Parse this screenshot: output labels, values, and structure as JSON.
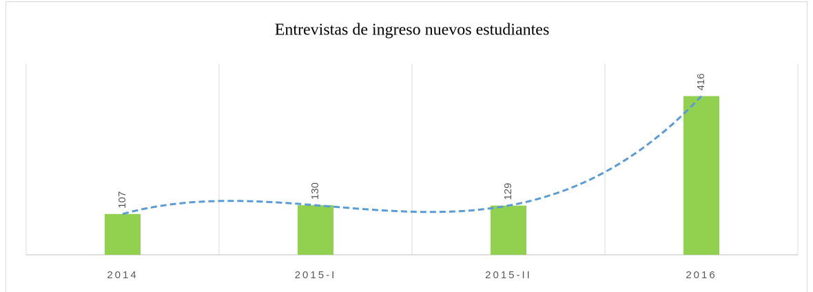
{
  "chart_data": {
    "type": "bar",
    "title": "Entrevistas de ingreso nuevos estudiantes",
    "categories": [
      "2014",
      "2015-I",
      "2015-II",
      "2016"
    ],
    "values": [
      107,
      130,
      129,
      416
    ],
    "color": "#92d050",
    "trendline_color": "#5b9bd5",
    "ylim": [
      0,
      500
    ],
    "grid": true
  }
}
